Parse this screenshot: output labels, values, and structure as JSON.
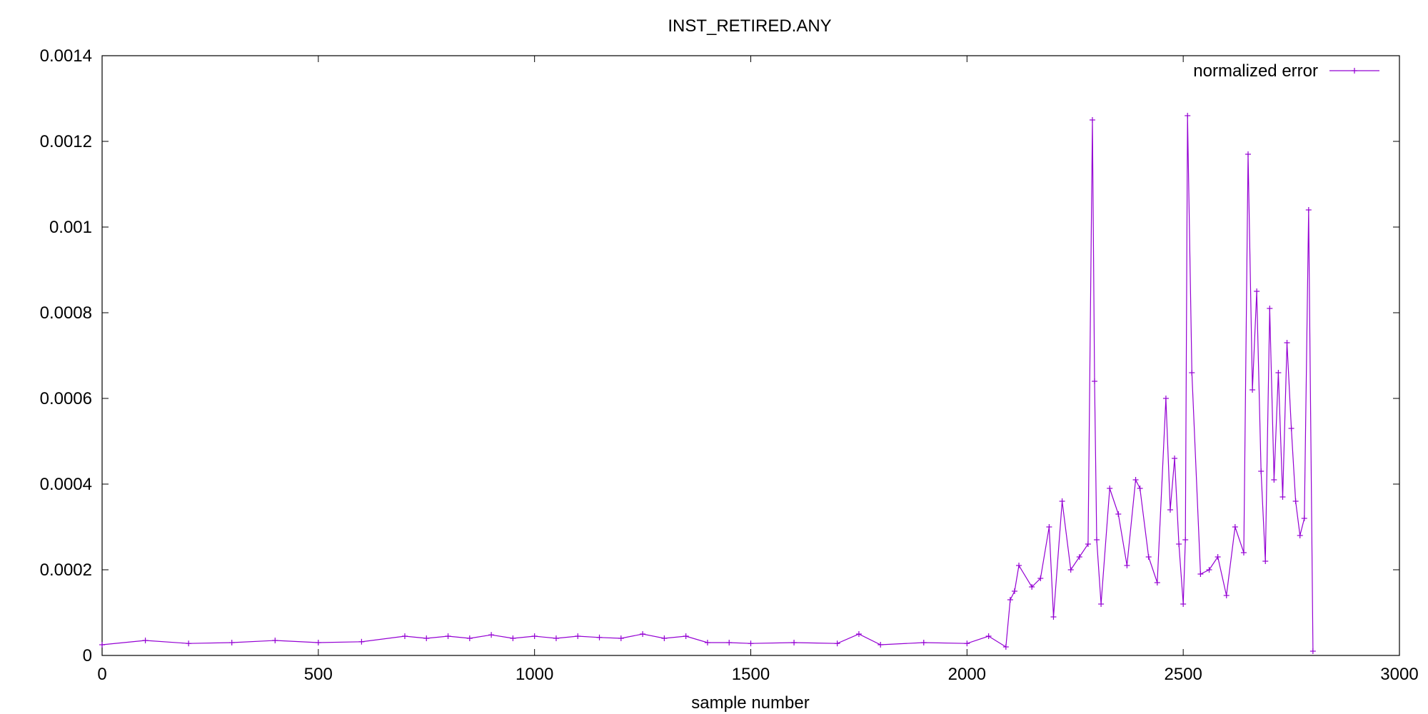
{
  "chart_data": {
    "type": "line",
    "title": "INST_RETIRED.ANY",
    "xlabel": "sample number",
    "ylabel": "",
    "xlim": [
      0,
      3000
    ],
    "ylim": [
      0,
      0.0014
    ],
    "x_ticks": [
      0,
      500,
      1000,
      1500,
      2000,
      2500,
      3000
    ],
    "x_tick_labels": [
      "0",
      "500",
      "1000",
      "1500",
      "2000",
      "2500",
      "3000"
    ],
    "y_ticks": [
      0,
      0.0002,
      0.0004,
      0.0006,
      0.0008,
      0.001,
      0.0012,
      0.0014
    ],
    "y_tick_labels": [
      "0",
      "0.0002",
      "0.0004",
      "0.0006",
      "0.0008",
      "0.001",
      "0.0012",
      "0.0014"
    ],
    "grid": false,
    "legend_position": "top-right",
    "marker": "plus",
    "series": [
      {
        "name": "normalized error",
        "color": "#9400d3",
        "x": [
          0,
          100,
          200,
          300,
          400,
          500,
          600,
          700,
          750,
          800,
          850,
          900,
          950,
          1000,
          1050,
          1100,
          1150,
          1200,
          1250,
          1300,
          1350,
          1400,
          1450,
          1500,
          1600,
          1700,
          1750,
          1800,
          1900,
          2000,
          2050,
          2090,
          2100,
          2110,
          2120,
          2150,
          2170,
          2190,
          2200,
          2220,
          2240,
          2260,
          2280,
          2290,
          2295,
          2300,
          2310,
          2330,
          2350,
          2370,
          2390,
          2400,
          2420,
          2440,
          2460,
          2470,
          2480,
          2490,
          2500,
          2505,
          2510,
          2520,
          2540,
          2560,
          2580,
          2600,
          2620,
          2640,
          2650,
          2660,
          2670,
          2680,
          2690,
          2700,
          2710,
          2720,
          2730,
          2740,
          2750,
          2760,
          2770,
          2780,
          2790,
          2800
        ],
        "values": [
          2.5e-05,
          3.5e-05,
          2.8e-05,
          3e-05,
          3.5e-05,
          3e-05,
          3.2e-05,
          4.5e-05,
          4e-05,
          4.5e-05,
          4e-05,
          4.8e-05,
          4e-05,
          4.5e-05,
          4e-05,
          4.5e-05,
          4.2e-05,
          4e-05,
          5e-05,
          4e-05,
          4.5e-05,
          3e-05,
          3e-05,
          2.8e-05,
          3e-05,
          2.8e-05,
          5e-05,
          2.5e-05,
          3e-05,
          2.8e-05,
          4.5e-05,
          2e-05,
          0.00013,
          0.00015,
          0.00021,
          0.00016,
          0.00018,
          0.0003,
          9e-05,
          0.00036,
          0.0002,
          0.00023,
          0.00026,
          0.00125,
          0.00064,
          0.00027,
          0.00012,
          0.00039,
          0.00033,
          0.00021,
          0.00041,
          0.00039,
          0.00023,
          0.00017,
          0.0006,
          0.00034,
          0.00046,
          0.00026,
          0.00012,
          0.00027,
          0.00126,
          0.00066,
          0.00019,
          0.0002,
          0.00023,
          0.00014,
          0.0003,
          0.00024,
          0.00117,
          0.00062,
          0.00085,
          0.00043,
          0.00022,
          0.00081,
          0.00041,
          0.00066,
          0.00037,
          0.00073,
          0.00053,
          0.00036,
          0.00028,
          0.00032,
          0.00104,
          1e-05
        ]
      }
    ]
  }
}
